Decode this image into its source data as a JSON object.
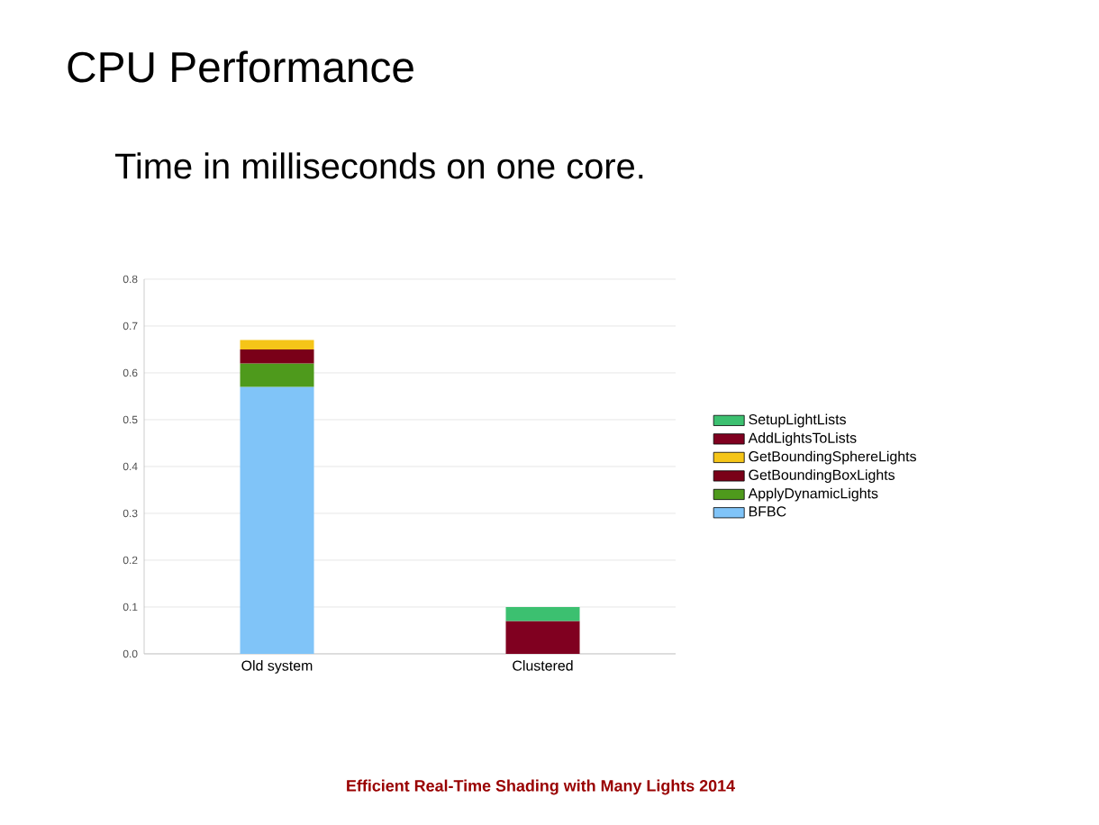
{
  "chart_data": {
    "type": "bar",
    "stacked": true,
    "title": "CPU Performance",
    "subtitle": "Time in milliseconds on one core.",
    "categories": [
      "Old system",
      "Clustered"
    ],
    "series": [
      {
        "name": "BFBC",
        "color": "#80c4f8",
        "values": [
          0.57,
          null
        ]
      },
      {
        "name": "ApplyDynamicLights",
        "color": "#4e9a1c",
        "values": [
          0.05,
          null
        ]
      },
      {
        "name": "GetBoundingBoxLights",
        "color": "#7a0018",
        "values": [
          0.03,
          null
        ]
      },
      {
        "name": "GetBoundingSphereLights",
        "color": "#f5c518",
        "values": [
          0.02,
          null
        ]
      },
      {
        "name": "AddLightsToLists",
        "color": "#800020",
        "values": [
          null,
          0.07
        ]
      },
      {
        "name": "SetupLightLists",
        "color": "#3cc070",
        "values": [
          null,
          0.03
        ]
      }
    ],
    "ylim": [
      0,
      0.8
    ],
    "yticks": [
      {
        "value": 0,
        "label": "0.0"
      },
      0.1,
      0.2,
      0.3,
      0.4,
      0.5,
      0.6,
      0.7,
      0.8
    ],
    "grid": "y",
    "legend": "right",
    "annotations": [
      "Efficient Real-Time Shading with Many Lights 2014"
    ]
  }
}
